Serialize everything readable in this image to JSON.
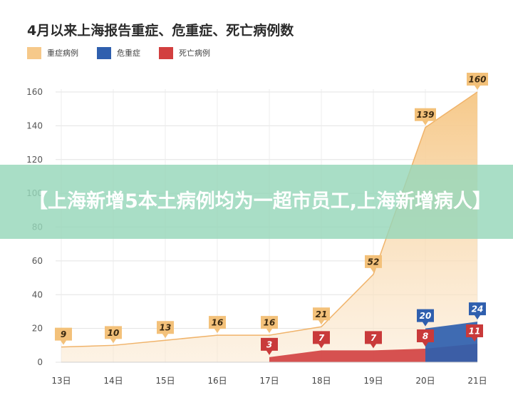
{
  "chart_data": {
    "type": "area",
    "title": "4月以来上海报告重症、危重症、死亡病例数",
    "xlabel": "",
    "ylabel": "",
    "categories": [
      "13日",
      "14日",
      "15日",
      "16日",
      "17日",
      "18日",
      "19日",
      "20日",
      "21日"
    ],
    "y_ticks": [
      0,
      20,
      40,
      60,
      80,
      100,
      120,
      140,
      160
    ],
    "ylim": [
      0,
      160
    ],
    "grid": true,
    "legend_position": "top-left",
    "series": [
      {
        "name": "重症病例",
        "color": "#f6c98a",
        "label_color": "#f3c17a",
        "values": [
          9,
          10,
          13,
          16,
          16,
          21,
          52,
          139,
          160
        ]
      },
      {
        "name": "危重症",
        "color": "#2f5fae",
        "label_color": "#2f5fae",
        "values": [
          null,
          null,
          null,
          null,
          null,
          null,
          null,
          20,
          24
        ]
      },
      {
        "name": "死亡病例",
        "color": "#d23f3f",
        "label_color": "#c93a3a",
        "values": [
          null,
          null,
          null,
          null,
          3,
          7,
          7,
          8,
          11
        ]
      }
    ]
  },
  "overlay": {
    "banner_text": "【上海新增5本土病例均为一超市员工,上海新增病人】"
  }
}
